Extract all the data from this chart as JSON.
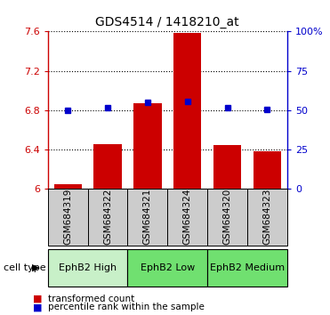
{
  "title": "GDS4514 / 1418210_at",
  "samples": [
    "GSM684319",
    "GSM684322",
    "GSM684321",
    "GSM684324",
    "GSM684320",
    "GSM684323"
  ],
  "red_values": [
    6.05,
    6.46,
    6.87,
    7.59,
    6.45,
    6.38
  ],
  "blue_values": [
    6.8,
    6.823,
    6.883,
    6.893,
    6.823,
    6.808
  ],
  "ylim_left": [
    6.0,
    7.6
  ],
  "ylim_right": [
    0,
    100
  ],
  "yticks_left": [
    6.0,
    6.4,
    6.8,
    7.2,
    7.6
  ],
  "yticks_right": [
    0,
    25,
    50,
    75,
    100
  ],
  "ytick_labels_left": [
    "6",
    "6.4",
    "6.8",
    "7.2",
    "7.6"
  ],
  "ytick_labels_right": [
    "0",
    "25",
    "50",
    "75",
    "100%"
  ],
  "groups": [
    {
      "label": "EphB2 High",
      "indices": [
        0,
        1
      ],
      "color": "#c8f0c8"
    },
    {
      "label": "EphB2 Low",
      "indices": [
        2,
        3
      ],
      "color": "#70e070"
    },
    {
      "label": "EphB2 Medium",
      "indices": [
        4,
        5
      ],
      "color": "#70e070"
    }
  ],
  "bar_color": "#cc0000",
  "marker_color": "#0000cc",
  "sample_box_color": "#cccccc",
  "bar_width": 0.7,
  "legend_red_label": "transformed count",
  "legend_blue_label": "percentile rank within the sample",
  "cell_type_label": "cell type"
}
